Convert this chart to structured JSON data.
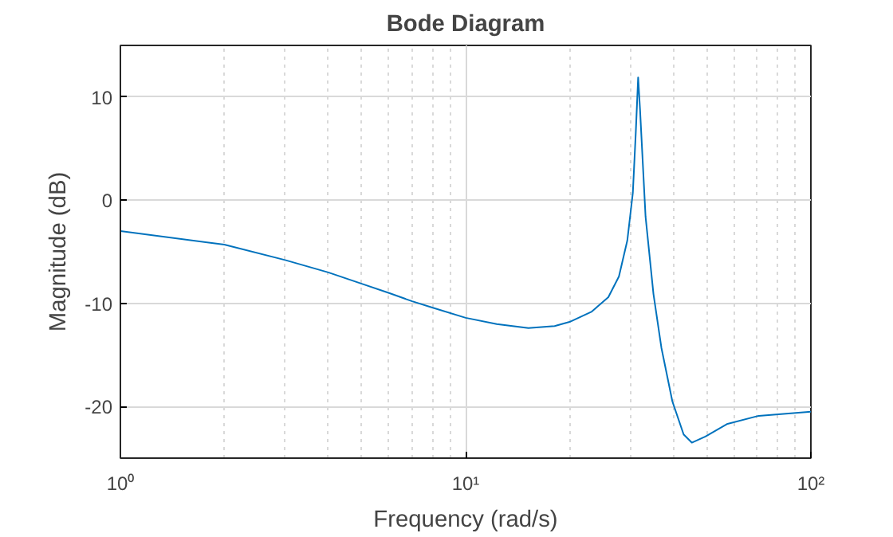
{
  "chart_data": {
    "type": "line",
    "title": "Bode Diagram",
    "xlabel": "Frequency (rad/s)",
    "ylabel": "Magnitude (dB)",
    "log": "x",
    "grid": true,
    "xlim": [
      1,
      100
    ],
    "ylim": [
      -25,
      15
    ],
    "xticks": [
      {
        "value": 1,
        "label": "10⁰"
      },
      {
        "value": 10,
        "label": "10¹"
      },
      {
        "value": 100,
        "label": "10²"
      }
    ],
    "yticks": [
      -20,
      -10,
      0,
      10
    ],
    "series": [
      {
        "color": "#0072bd",
        "x": [
          1,
          2,
          3,
          4,
          5,
          6,
          7,
          8,
          10,
          12.3,
          15.2,
          18.1,
          20,
          23.2,
          25.9,
          27.8,
          29.4,
          30.5,
          31.1,
          31.6,
          32.0,
          33.2,
          35.0,
          36.9,
          39.7,
          42.8,
          45.2,
          49.5,
          57.1,
          70.6,
          100
        ],
        "values": [
          -3.0,
          -4.3,
          -5.8,
          -7.0,
          -8.1,
          -9.0,
          -9.8,
          -10.4,
          -11.4,
          -12.0,
          -12.4,
          -12.2,
          -11.8,
          -10.8,
          -9.4,
          -7.4,
          -3.9,
          0.7,
          6.5,
          11.9,
          8.8,
          -1.6,
          -9.1,
          -14.3,
          -19.5,
          -22.7,
          -23.5,
          -22.9,
          -21.7,
          -20.9,
          -20.5
        ]
      }
    ]
  }
}
